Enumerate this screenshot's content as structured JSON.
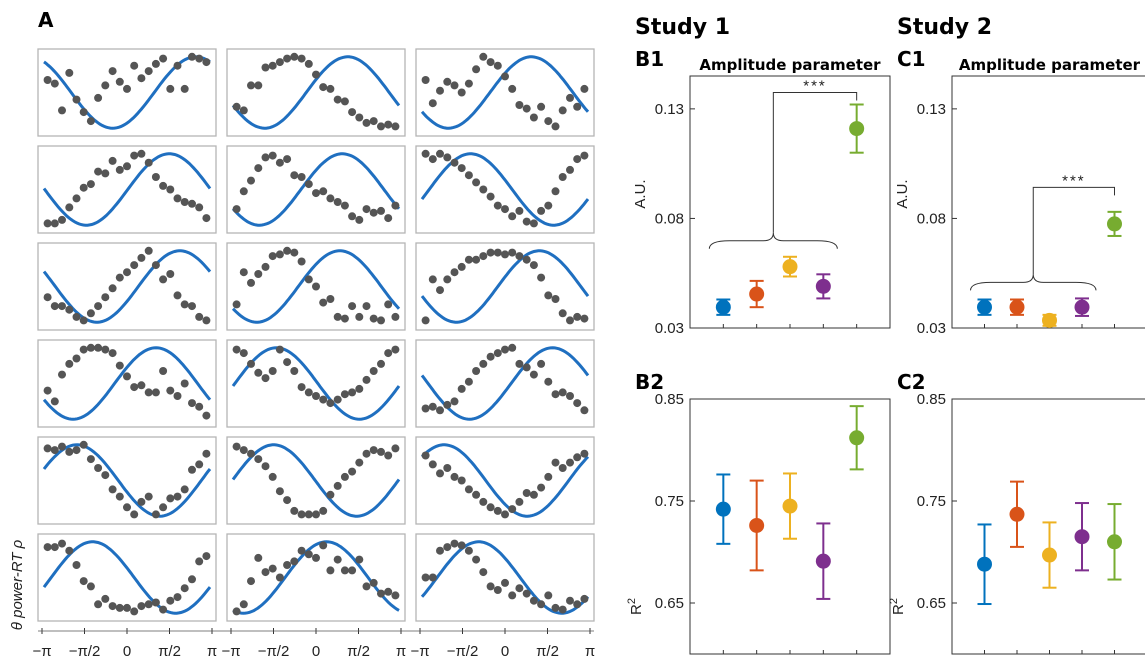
{
  "colors": {
    "curve": "#1f6fc0",
    "dot": "#555555",
    "panel_border": "#b5b5b5",
    "series": [
      "#0072BD",
      "#D95319",
      "#EDB120",
      "#7E2F8E",
      "#77AC30"
    ]
  },
  "chart_data": [
    {
      "id": "A",
      "type": "scatter",
      "panel_label": "A",
      "grid": "6x3",
      "x_ticks": [
        "−π",
        "−π/2",
        "0",
        "π/2",
        "π"
      ],
      "ylabel": "θ power-RT ρ",
      "x_range": [
        -3.1416,
        3.1416
      ],
      "y_range": [
        -1.15,
        1.15
      ],
      "panels": [
        {
          "phase": 2.6,
          "dots": [
            0.35,
            0.25,
            -0.5,
            0.55,
            -0.2,
            -0.55,
            -0.8,
            -0.15,
            0.2,
            0.6,
            0.3,
            0.1,
            0.75,
            0.4,
            0.6,
            0.8,
            0.95,
            0.1,
            0.75,
            0.1,
            1.0,
            0.95,
            0.85
          ]
        },
        {
          "phase": 1.2,
          "dots": [
            -0.4,
            -0.5,
            0.2,
            0.2,
            0.7,
            0.75,
            0.85,
            0.95,
            1.0,
            0.95,
            0.8,
            0.5,
            0.15,
            0.1,
            -0.2,
            -0.25,
            -0.55,
            -0.7,
            -0.85,
            -0.8,
            -0.95,
            -0.9,
            -0.95
          ]
        },
        {
          "phase": 1.0,
          "dots": [
            0.35,
            -0.3,
            0.05,
            0.3,
            0.2,
            0.0,
            0.25,
            0.65,
            1.0,
            0.85,
            0.75,
            0.45,
            0.1,
            -0.35,
            -0.45,
            -0.7,
            -0.4,
            -0.8,
            -0.95,
            -0.5,
            -0.15,
            -0.4,
            0.1
          ]
        },
        {
          "phase": 1.6,
          "dots": [
            -0.95,
            -0.95,
            -0.85,
            -0.5,
            -0.25,
            0.05,
            0.15,
            0.5,
            0.45,
            0.8,
            0.55,
            0.65,
            0.95,
            1.0,
            0.75,
            0.35,
            0.1,
            0.0,
            -0.25,
            -0.35,
            -0.4,
            -0.5,
            -0.8
          ]
        },
        {
          "phase": 1.0,
          "dots": [
            -0.55,
            -0.05,
            0.25,
            0.6,
            0.9,
            0.95,
            0.75,
            0.85,
            0.4,
            0.35,
            0.15,
            -0.1,
            -0.05,
            -0.25,
            -0.35,
            -0.45,
            -0.75,
            -0.85,
            -0.55,
            -0.65,
            -0.6,
            -0.8,
            -0.45
          ]
        },
        {
          "phase": -1.3,
          "dots": [
            1.0,
            0.85,
            1.0,
            0.9,
            0.75,
            0.6,
            0.4,
            0.2,
            0.0,
            -0.2,
            -0.45,
            -0.55,
            -0.75,
            -0.6,
            -0.9,
            -0.95,
            -0.6,
            -0.45,
            -0.05,
            0.35,
            0.55,
            0.85,
            0.95
          ]
        },
        {
          "phase": 2.0,
          "dots": [
            -0.3,
            -0.55,
            -0.55,
            -0.65,
            -0.85,
            -0.95,
            -0.75,
            -0.55,
            -0.3,
            -0.05,
            0.25,
            0.4,
            0.6,
            0.8,
            1.0,
            0.6,
            0.2,
            0.35,
            -0.25,
            -0.5,
            -0.55,
            -0.85,
            -0.95
          ]
        },
        {
          "phase": 0.9,
          "dots": [
            -0.5,
            0.4,
            0.1,
            0.35,
            0.55,
            0.85,
            0.9,
            1.0,
            0.95,
            0.7,
            0.2,
            0.0,
            -0.45,
            -0.35,
            -0.85,
            -0.9,
            -0.55,
            -0.85,
            -0.55,
            -0.9,
            -0.95,
            -0.5,
            -0.85
          ]
        },
        {
          "phase": 1.3,
          "dots": [
            -0.95,
            0.2,
            -0.1,
            0.2,
            0.4,
            0.55,
            0.75,
            0.75,
            0.85,
            0.95,
            0.95,
            0.9,
            0.95,
            0.85,
            0.75,
            0.6,
            0.25,
            -0.25,
            -0.35,
            -0.75,
            -0.95,
            -0.85,
            -0.9
          ]
        },
        {
          "phase": 1.1,
          "dots": [
            -0.2,
            -0.5,
            0.25,
            0.55,
            0.7,
            0.95,
            1.0,
            1.0,
            0.95,
            0.85,
            0.5,
            0.2,
            -0.1,
            -0.05,
            -0.25,
            -0.25,
            0.35,
            -0.2,
            -0.35,
            0.0,
            -0.55,
            -0.65,
            -0.9
          ]
        },
        {
          "phase": -1.5,
          "dots": [
            0.95,
            0.85,
            0.55,
            0.3,
            0.15,
            0.35,
            0.95,
            0.6,
            0.35,
            -0.1,
            -0.25,
            -0.35,
            -0.45,
            -0.55,
            -0.45,
            -0.3,
            -0.25,
            -0.15,
            0.1,
            0.35,
            0.55,
            0.85,
            0.95
          ]
        },
        {
          "phase": 1.8,
          "dots": [
            -0.7,
            -0.65,
            -0.75,
            -0.6,
            -0.5,
            -0.15,
            0.05,
            0.35,
            0.55,
            0.75,
            0.85,
            0.95,
            1.0,
            0.55,
            0.45,
            0.25,
            0.55,
            0.05,
            -0.3,
            -0.25,
            -0.35,
            -0.55,
            -0.75
          ]
        },
        {
          "phase": -1.9,
          "dots": [
            0.9,
            0.85,
            0.95,
            0.8,
            0.85,
            1.0,
            0.6,
            0.35,
            0.15,
            -0.25,
            -0.45,
            -0.75,
            -0.95,
            -0.6,
            -0.45,
            -0.95,
            -0.75,
            -0.5,
            -0.45,
            -0.25,
            0.3,
            0.45,
            0.75
          ]
        },
        {
          "phase": -1.6,
          "dots": [
            0.95,
            0.85,
            0.75,
            0.6,
            0.4,
            0.1,
            -0.3,
            -0.55,
            -0.85,
            -0.95,
            -0.95,
            -0.95,
            -0.85,
            -0.4,
            -0.15,
            0.1,
            0.25,
            0.5,
            0.75,
            0.85,
            0.8,
            0.7,
            0.9
          ]
        },
        {
          "phase": -2.3,
          "dots": [
            0.7,
            0.45,
            0.2,
            0.35,
            0.1,
            0.0,
            -0.25,
            -0.4,
            -0.6,
            -0.75,
            -0.85,
            -0.95,
            -0.8,
            -0.6,
            -0.35,
            -0.4,
            -0.2,
            0.1,
            0.5,
            0.35,
            0.5,
            0.65,
            0.75
          ]
        },
        {
          "phase": -1.3,
          "dots": [
            0.85,
            0.85,
            0.95,
            0.75,
            0.35,
            -0.1,
            -0.25,
            -0.75,
            -0.6,
            -0.8,
            -0.85,
            -0.85,
            -0.95,
            -0.8,
            -0.75,
            -0.7,
            -0.9,
            -0.65,
            -0.55,
            -0.3,
            -0.05,
            0.45,
            0.6
          ]
        },
        {
          "phase": 0.4,
          "dots": [
            -0.95,
            -0.75,
            -0.1,
            0.55,
            0.15,
            0.25,
            0.0,
            0.35,
            0.45,
            0.75,
            0.65,
            0.55,
            0.9,
            0.2,
            0.5,
            0.2,
            0.2,
            0.5,
            -0.25,
            -0.15,
            -0.45,
            -0.4,
            -0.5
          ]
        },
        {
          "phase": -1.0,
          "dots": [
            0.0,
            0.0,
            0.75,
            0.85,
            0.95,
            0.9,
            0.75,
            0.5,
            0.15,
            -0.25,
            -0.35,
            -0.15,
            -0.5,
            -0.3,
            -0.45,
            -0.65,
            -0.75,
            -0.5,
            -0.85,
            -0.9,
            -0.65,
            -0.75,
            -0.6
          ]
        }
      ]
    },
    {
      "id": "B1",
      "type": "scatter",
      "study_title": "Study 1",
      "panel_label": "B1",
      "title": "Amplitude parameter",
      "ylabel": "A.U.",
      "ylim": [
        0.03,
        0.145
      ],
      "yticks": [
        0.03,
        0.08,
        0.13
      ],
      "ytick_labels": [
        "0.03",
        "0.08",
        "0.13"
      ],
      "values": [
        0.0395,
        0.0455,
        0.058,
        0.049,
        0.121
      ],
      "errors": [
        0.0035,
        0.006,
        0.0045,
        0.0055,
        0.011
      ],
      "significance": "***"
    },
    {
      "id": "B2",
      "type": "scatter",
      "panel_label": "B2",
      "ylabel": "R2",
      "ylim": [
        0.6,
        0.85
      ],
      "yticks": [
        0.65,
        0.75,
        0.85
      ],
      "ytick_labels": [
        "0.65",
        "0.75",
        "0.85"
      ],
      "values": [
        0.742,
        0.726,
        0.745,
        0.691,
        0.812
      ],
      "errors": [
        0.034,
        0.044,
        0.032,
        0.037,
        0.031
      ]
    },
    {
      "id": "C1",
      "type": "scatter",
      "study_title": "Study 2",
      "panel_label": "C1",
      "title": "Amplitude parameter",
      "ylabel": "A.U.",
      "ylim": [
        0.03,
        0.145
      ],
      "yticks": [
        0.03,
        0.08,
        0.13
      ],
      "ytick_labels": [
        "0.03",
        "0.08",
        "0.13"
      ],
      "values": [
        0.0395,
        0.0395,
        0.0335,
        0.0395,
        0.0775
      ],
      "errors": [
        0.0035,
        0.0035,
        0.0025,
        0.004,
        0.0055
      ],
      "significance": "***"
    },
    {
      "id": "C2",
      "type": "scatter",
      "panel_label": "C2",
      "ylabel": "R2",
      "ylim": [
        0.6,
        0.85
      ],
      "yticks": [
        0.65,
        0.75,
        0.85
      ],
      "ytick_labels": [
        "0.65",
        "0.75",
        "0.85"
      ],
      "values": [
        0.688,
        0.737,
        0.697,
        0.715,
        0.71
      ],
      "errors": [
        0.039,
        0.032,
        0.032,
        0.033,
        0.037
      ]
    }
  ]
}
